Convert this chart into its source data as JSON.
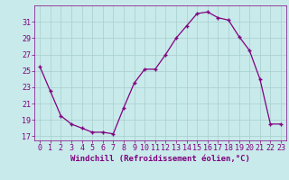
{
  "x": [
    0,
    1,
    2,
    3,
    4,
    5,
    6,
    7,
    8,
    9,
    10,
    11,
    12,
    13,
    14,
    15,
    16,
    17,
    18,
    19,
    20,
    21,
    22,
    23
  ],
  "y": [
    25.5,
    22.5,
    19.5,
    18.5,
    18.0,
    17.5,
    17.5,
    17.3,
    20.5,
    23.5,
    25.2,
    25.2,
    27.0,
    29.0,
    30.5,
    32.0,
    32.2,
    31.5,
    31.2,
    29.2,
    27.5,
    24.0,
    18.5,
    18.5
  ],
  "line_color": "#800080",
  "marker": "+",
  "marker_size": 3.5,
  "bg_color": "#c8eaea",
  "grid_color": "#a8cece",
  "tick_color": "#800080",
  "xlabel": "Windchill (Refroidissement éolien,°C)",
  "yticks": [
    17,
    19,
    21,
    23,
    25,
    27,
    29,
    31
  ],
  "xticks": [
    0,
    1,
    2,
    3,
    4,
    5,
    6,
    7,
    8,
    9,
    10,
    11,
    12,
    13,
    14,
    15,
    16,
    17,
    18,
    19,
    20,
    21,
    22,
    23
  ],
  "xlim": [
    -0.5,
    23.5
  ],
  "ylim": [
    16.5,
    33.0
  ],
  "font_size": 6,
  "label_font_size": 6.5,
  "linewidth": 0.9,
  "markeredgewidth": 1.0
}
